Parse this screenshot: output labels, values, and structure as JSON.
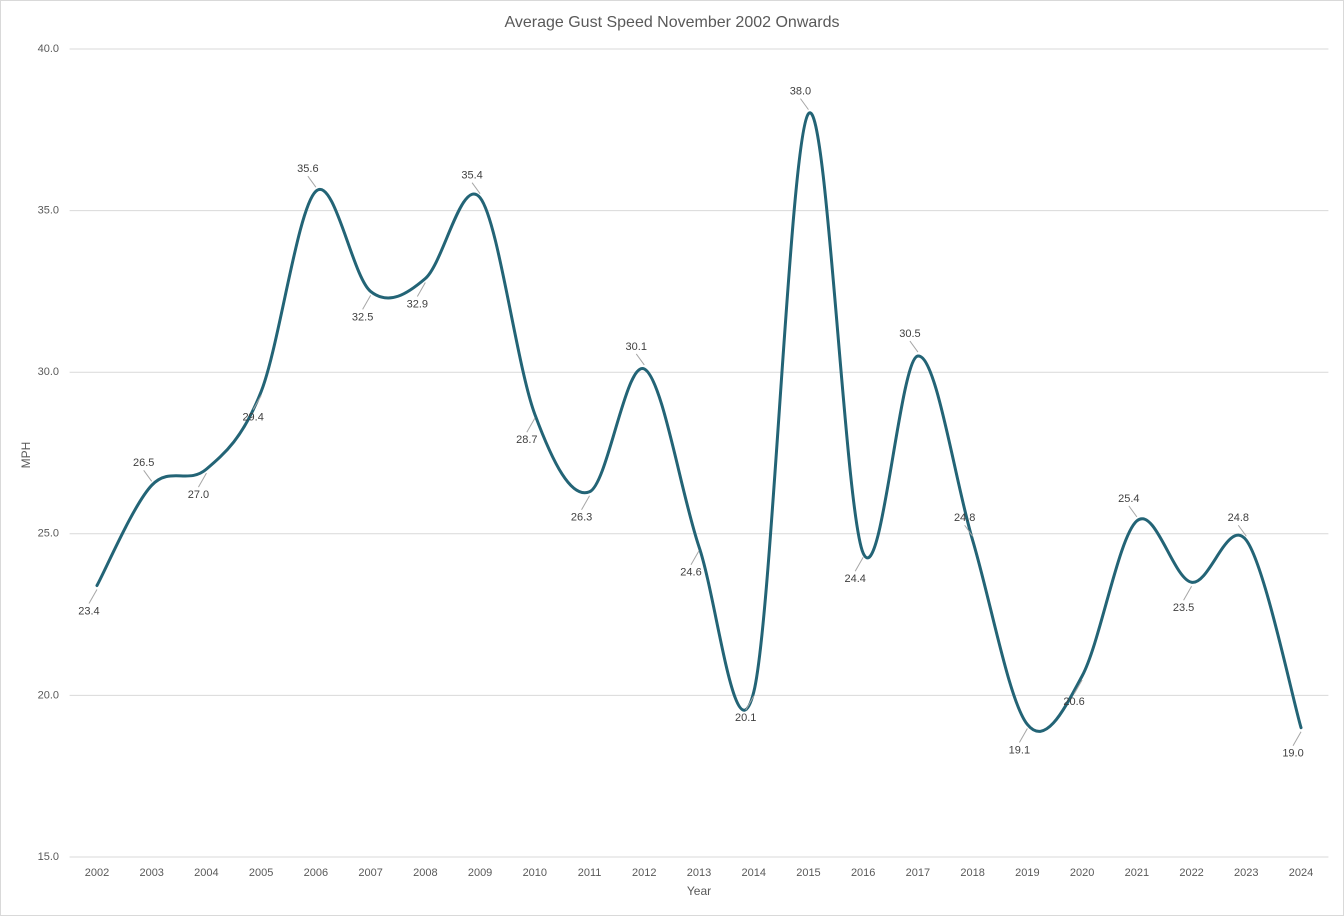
{
  "chart_data": {
    "type": "line",
    "title": "Average Gust Speed November 2002 Onwards",
    "x_label": "Year",
    "y_label": "MPH",
    "categories": [
      "2002",
      "2003",
      "2004",
      "2005",
      "2006",
      "2007",
      "2008",
      "2009",
      "2010",
      "2011",
      "2012",
      "2013",
      "2014",
      "2015",
      "2016",
      "2017",
      "2018",
      "2019",
      "2020",
      "2021",
      "2022",
      "2023",
      "2024"
    ],
    "series": [
      {
        "name": "Average Gust Speed",
        "color": "#236476",
        "values": [
          23.4,
          26.5,
          27.0,
          29.4,
          35.6,
          32.5,
          32.9,
          35.4,
          28.7,
          26.3,
          30.1,
          24.6,
          20.1,
          38.0,
          24.4,
          30.5,
          24.8,
          19.1,
          20.6,
          25.4,
          23.5,
          24.8,
          19.0
        ],
        "value_labels": [
          "23.4",
          "26.5",
          "27.0",
          "29.4",
          "35.6",
          "32.5",
          "32.9",
          "35.4",
          "28.7",
          "26.3",
          "30.1",
          "24.6",
          "20.1",
          "38.0",
          "24.4",
          "30.5",
          "24.8",
          "19.1",
          "20.6",
          "25.4",
          "23.5",
          "24.8",
          "19.0"
        ]
      }
    ],
    "ylim": [
      15,
      40
    ],
    "yticks": [
      {
        "value": 15,
        "label": "15.0"
      },
      {
        "value": 20,
        "label": "20.0"
      },
      {
        "value": 25,
        "label": "25.0"
      },
      {
        "value": 30,
        "label": "30.0"
      },
      {
        "value": 35,
        "label": "35.0"
      },
      {
        "value": 40,
        "label": "40.0"
      }
    ],
    "grid": true,
    "smooth": true
  }
}
